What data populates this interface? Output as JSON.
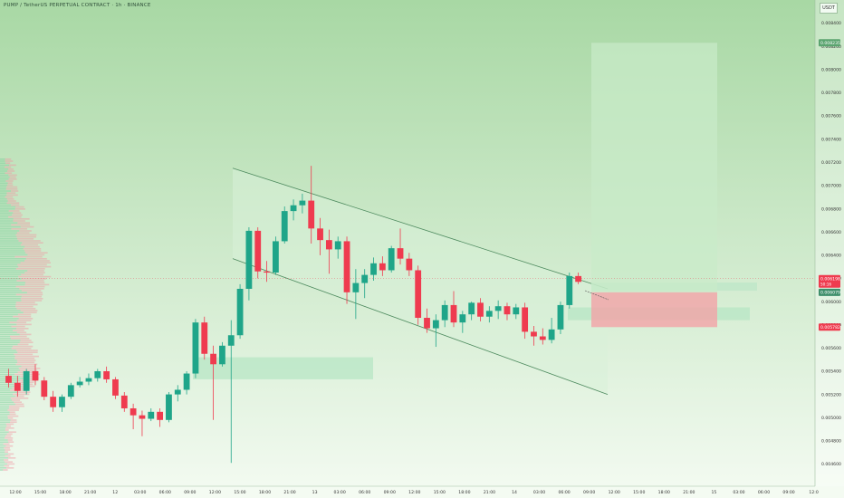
{
  "chart_data": {
    "type": "candlestick",
    "title": "PUMP / TetherUS PERPETUAL CONTRACT · 1h · BINANCE",
    "unit": "USDT",
    "ylim": [
      0.0044,
      0.0087
    ],
    "y_ticks": [
      0.0046,
      0.0048,
      0.005,
      0.0052,
      0.0054,
      0.0056,
      0.0058,
      0.006,
      0.0062,
      0.0064,
      0.0066,
      0.0068,
      0.007,
      0.0072,
      0.0074,
      0.0076,
      0.0078,
      0.008,
      0.0082,
      0.0084
    ],
    "y_tick_labels": [
      "0.004600",
      "0.004800",
      "0.005000",
      "0.005200",
      "0.005400",
      "0.005600",
      "0.005800",
      "0.006000",
      "0.006200",
      "0.006400",
      "0.006600",
      "0.006800",
      "0.007000",
      "0.007200",
      "0.007400",
      "0.007600",
      "0.007800",
      "0.008000",
      "0.008200",
      "0.008400"
    ],
    "x_labels": [
      "12:00",
      "15:00",
      "18:00",
      "21:00",
      "12",
      "03:00",
      "06:00",
      "09:00",
      "12:00",
      "15:00",
      "18:00",
      "21:00",
      "13",
      "03:00",
      "06:00",
      "09:00",
      "12:00",
      "15:00",
      "18:00",
      "21:00",
      "14",
      "03:00",
      "06:00",
      "09:00",
      "12:00",
      "15:00",
      "18:00",
      "21:00",
      "15",
      "03:00",
      "06:00",
      "09:00",
      "12:0"
    ],
    "candles": [
      {
        "o": 0.00536,
        "h": 0.00542,
        "l": 0.00526,
        "c": 0.0053
      },
      {
        "o": 0.0053,
        "h": 0.00536,
        "l": 0.00518,
        "c": 0.00523
      },
      {
        "o": 0.00523,
        "h": 0.00542,
        "l": 0.0052,
        "c": 0.0054
      },
      {
        "o": 0.0054,
        "h": 0.00546,
        "l": 0.00528,
        "c": 0.00532
      },
      {
        "o": 0.00532,
        "h": 0.00535,
        "l": 0.00515,
        "c": 0.00518
      },
      {
        "o": 0.00518,
        "h": 0.00523,
        "l": 0.00505,
        "c": 0.00509
      },
      {
        "o": 0.00509,
        "h": 0.0052,
        "l": 0.00505,
        "c": 0.00518
      },
      {
        "o": 0.00518,
        "h": 0.0053,
        "l": 0.00516,
        "c": 0.00528
      },
      {
        "o": 0.00528,
        "h": 0.00535,
        "l": 0.00526,
        "c": 0.00531
      },
      {
        "o": 0.00531,
        "h": 0.00538,
        "l": 0.00528,
        "c": 0.00534
      },
      {
        "o": 0.00534,
        "h": 0.00542,
        "l": 0.00531,
        "c": 0.0054
      },
      {
        "o": 0.0054,
        "h": 0.00544,
        "l": 0.0053,
        "c": 0.00533
      },
      {
        "o": 0.00533,
        "h": 0.00535,
        "l": 0.00516,
        "c": 0.00519
      },
      {
        "o": 0.00519,
        "h": 0.00522,
        "l": 0.00505,
        "c": 0.00508
      },
      {
        "o": 0.00508,
        "h": 0.00512,
        "l": 0.0049,
        "c": 0.00502
      },
      {
        "o": 0.00502,
        "h": 0.00506,
        "l": 0.00484,
        "c": 0.00499
      },
      {
        "o": 0.00499,
        "h": 0.00508,
        "l": 0.00497,
        "c": 0.00505
      },
      {
        "o": 0.00505,
        "h": 0.00508,
        "l": 0.00492,
        "c": 0.00498
      },
      {
        "o": 0.00498,
        "h": 0.00522,
        "l": 0.00496,
        "c": 0.0052
      },
      {
        "o": 0.0052,
        "h": 0.00528,
        "l": 0.00514,
        "c": 0.00524
      },
      {
        "o": 0.00524,
        "h": 0.0054,
        "l": 0.0052,
        "c": 0.00538
      },
      {
        "o": 0.00538,
        "h": 0.00585,
        "l": 0.00534,
        "c": 0.00582
      },
      {
        "o": 0.00582,
        "h": 0.00587,
        "l": 0.0055,
        "c": 0.00555
      },
      {
        "o": 0.00555,
        "h": 0.00562,
        "l": 0.00498,
        "c": 0.00546
      },
      {
        "o": 0.00546,
        "h": 0.00565,
        "l": 0.00544,
        "c": 0.00562
      },
      {
        "o": 0.00562,
        "h": 0.00584,
        "l": 0.00461,
        "c": 0.00571
      },
      {
        "o": 0.00571,
        "h": 0.00615,
        "l": 0.00568,
        "c": 0.00611
      },
      {
        "o": 0.00611,
        "h": 0.00664,
        "l": 0.00601,
        "c": 0.00661
      },
      {
        "o": 0.00661,
        "h": 0.00664,
        "l": 0.0062,
        "c": 0.00626
      },
      {
        "o": 0.00626,
        "h": 0.00635,
        "l": 0.00617,
        "c": 0.00625
      },
      {
        "o": 0.00625,
        "h": 0.00656,
        "l": 0.00623,
        "c": 0.00652
      },
      {
        "o": 0.00652,
        "h": 0.00682,
        "l": 0.0065,
        "c": 0.00678
      },
      {
        "o": 0.00678,
        "h": 0.00688,
        "l": 0.0067,
        "c": 0.00683
      },
      {
        "o": 0.00683,
        "h": 0.00693,
        "l": 0.00676,
        "c": 0.00687
      },
      {
        "o": 0.00687,
        "h": 0.00717,
        "l": 0.0065,
        "c": 0.00663
      },
      {
        "o": 0.00663,
        "h": 0.00672,
        "l": 0.0064,
        "c": 0.00653
      },
      {
        "o": 0.00653,
        "h": 0.00662,
        "l": 0.00624,
        "c": 0.00645
      },
      {
        "o": 0.00645,
        "h": 0.00656,
        "l": 0.00637,
        "c": 0.00652
      },
      {
        "o": 0.00652,
        "h": 0.00656,
        "l": 0.00598,
        "c": 0.00608
      },
      {
        "o": 0.00608,
        "h": 0.00628,
        "l": 0.00585,
        "c": 0.00616
      },
      {
        "o": 0.00616,
        "h": 0.00628,
        "l": 0.00603,
        "c": 0.00623
      },
      {
        "o": 0.00623,
        "h": 0.00638,
        "l": 0.00618,
        "c": 0.00633
      },
      {
        "o": 0.00633,
        "h": 0.00639,
        "l": 0.00622,
        "c": 0.00627
      },
      {
        "o": 0.00627,
        "h": 0.00648,
        "l": 0.00625,
        "c": 0.00646
      },
      {
        "o": 0.00646,
        "h": 0.00663,
        "l": 0.00632,
        "c": 0.00637
      },
      {
        "o": 0.00637,
        "h": 0.00642,
        "l": 0.00622,
        "c": 0.00627
      },
      {
        "o": 0.00627,
        "h": 0.00631,
        "l": 0.0058,
        "c": 0.00586
      },
      {
        "o": 0.00586,
        "h": 0.00594,
        "l": 0.00573,
        "c": 0.00577
      },
      {
        "o": 0.00577,
        "h": 0.00589,
        "l": 0.00561,
        "c": 0.00584
      },
      {
        "o": 0.00584,
        "h": 0.00601,
        "l": 0.00578,
        "c": 0.00597
      },
      {
        "o": 0.00597,
        "h": 0.00609,
        "l": 0.00578,
        "c": 0.00582
      },
      {
        "o": 0.00582,
        "h": 0.00592,
        "l": 0.00573,
        "c": 0.00589
      },
      {
        "o": 0.00589,
        "h": 0.006,
        "l": 0.00584,
        "c": 0.00599
      },
      {
        "o": 0.00599,
        "h": 0.00603,
        "l": 0.00583,
        "c": 0.00587
      },
      {
        "o": 0.00587,
        "h": 0.00596,
        "l": 0.00582,
        "c": 0.00592
      },
      {
        "o": 0.00592,
        "h": 0.00601,
        "l": 0.00585,
        "c": 0.00596
      },
      {
        "o": 0.00596,
        "h": 0.00599,
        "l": 0.00584,
        "c": 0.00589
      },
      {
        "o": 0.00589,
        "h": 0.00598,
        "l": 0.00585,
        "c": 0.00595
      },
      {
        "o": 0.00595,
        "h": 0.00599,
        "l": 0.00568,
        "c": 0.00574
      },
      {
        "o": 0.00574,
        "h": 0.00579,
        "l": 0.00562,
        "c": 0.0057
      },
      {
        "o": 0.0057,
        "h": 0.00577,
        "l": 0.00563,
        "c": 0.00567
      },
      {
        "o": 0.00567,
        "h": 0.00586,
        "l": 0.00564,
        "c": 0.00576
      },
      {
        "o": 0.00576,
        "h": 0.006,
        "l": 0.00572,
        "c": 0.00597
      },
      {
        "o": 0.00597,
        "h": 0.00625,
        "l": 0.00594,
        "c": 0.00622
      },
      {
        "o": 0.00622,
        "h": 0.00625,
        "l": 0.00615,
        "c": 0.00617
      }
    ],
    "channel": {
      "upper": [
        0.00715,
        0.00611
      ],
      "lower": [
        0.00637,
        0.0052
      ]
    },
    "zones": [
      {
        "name": "demand-zone",
        "from_index": 15,
        "to_index": 28,
        "top": 0.00552,
        "bottom": 0.00533
      },
      {
        "name": "fvg-zone",
        "from_index": 42,
        "to_index": 68,
        "top": 0.00595,
        "bottom": 0.00584
      }
    ],
    "long_position": {
      "entry": 0.00608,
      "target": 0.00823,
      "stop": 0.00578,
      "label_entry": "0.006079",
      "label_target": "0.008235",
      "label_stop": "0.005782"
    },
    "last_price": {
      "value": 0.006198,
      "label": "0.006198",
      "countdown": "50:16"
    },
    "colors": {
      "up": "#1fa589",
      "down": "#ef3b4f",
      "bg_top": "#a8d8a4",
      "bg_bottom": "#f4fbf2",
      "target_zone": "#c9ebc9",
      "stop_zone": "#f2a3a7",
      "zone": "#b7e6c4"
    }
  }
}
